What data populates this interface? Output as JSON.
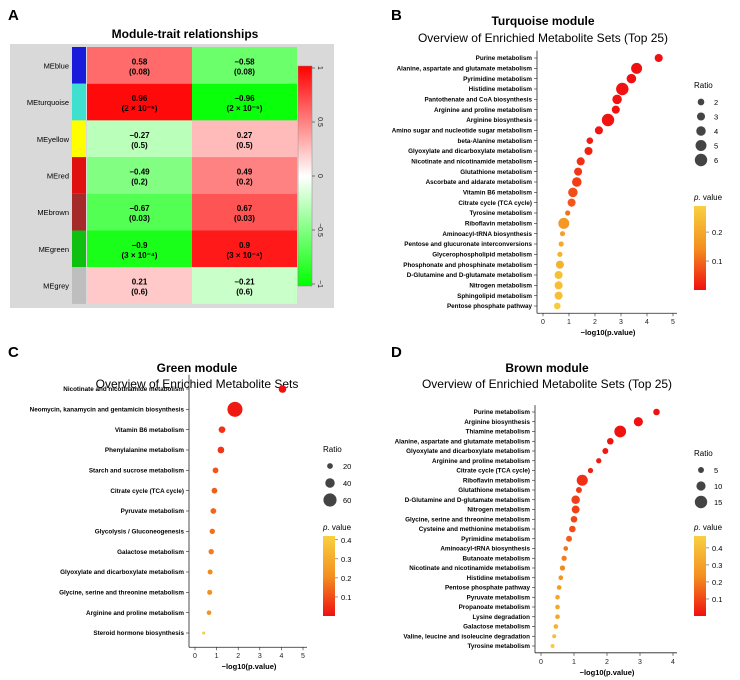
{
  "chart_data": [
    {
      "panel": "A",
      "type": "heatmap",
      "title": "Module-trait relationships",
      "rows": [
        {
          "label": "MEblue",
          "color": "#1a1adb",
          "values": [
            "0.58",
            "−0.58"
          ],
          "pvalues": [
            "(0.08)",
            "(0.08)"
          ],
          "r": [
            0.58,
            -0.58
          ]
        },
        {
          "label": "MEturquoise",
          "color": "#40e0d0",
          "values": [
            "0.96",
            "−0.96"
          ],
          "pvalues": [
            "(2 × 10⁻⁵)",
            "(2 × 10⁻⁵)"
          ],
          "r": [
            0.96,
            -0.96
          ]
        },
        {
          "label": "MEyellow",
          "color": "#ffff00",
          "values": [
            "−0.27",
            "0.27"
          ],
          "pvalues": [
            "(0.5)",
            "(0.5)"
          ],
          "r": [
            -0.27,
            0.27
          ]
        },
        {
          "label": "MEred",
          "color": "#e01010",
          "values": [
            "−0.49",
            "0.49"
          ],
          "pvalues": [
            "(0.2)",
            "(0.2)"
          ],
          "r": [
            -0.49,
            0.49
          ]
        },
        {
          "label": "MEbrown",
          "color": "#a52a2a",
          "values": [
            "−0.67",
            "0.67"
          ],
          "pvalues": [
            "(0.03)",
            "(0.03)"
          ],
          "r": [
            -0.67,
            0.67
          ]
        },
        {
          "label": "MEgreen",
          "color": "#10c010",
          "values": [
            "−0.9",
            "0.9"
          ],
          "pvalues": [
            "(3 × 10⁻⁴)",
            "(3 × 10⁻⁴)"
          ],
          "r": [
            -0.9,
            0.9
          ]
        },
        {
          "label": "MEgrey",
          "color": "#bebebe",
          "values": [
            "0.21",
            "−0.21"
          ],
          "pvalues": [
            "(0.6)",
            "(0.6)"
          ],
          "r": [
            0.21,
            -0.21
          ]
        }
      ],
      "colorbar": {
        "ticks": [
          "1",
          "0.5",
          "0",
          "−0.5",
          "−1"
        ],
        "range": [
          -1,
          1
        ]
      }
    },
    {
      "panel": "B",
      "type": "scatter",
      "title": "Turquoise module",
      "subtitle": "Overview of Enrichied Metabolite Sets (Top 25)",
      "xlabel": "−log10(p.value)",
      "xlim": [
        0,
        5
      ],
      "xticks": [
        "0",
        "1",
        "2",
        "3",
        "4",
        "5"
      ],
      "categories": [
        "Purine metabolism",
        "Alanine, aspartate and glutamate metabolism",
        "Pyrimidine metabolism",
        "Histidine metabolism",
        "Pantothenate and CoA biosynthesis",
        "Arginine and proline metabolism",
        "Arginine biosynthesis",
        "Amino sugar and nucleotide sugar metabolism",
        "beta-Alanine metabolism",
        "Glyoxylate and dicarboxylate metabolism",
        "Nicotinate and nicotinamide metabolism",
        "Glutathione metabolism",
        "Ascorbate and aldarate metabolism",
        "Vitamin B6 metabolism",
        "Citrate cycle (TCA cycle)",
        "Tyrosine metabolism",
        "Riboflavin metabolism",
        "Aminoacyl-tRNA biosynthesis",
        "Pentose and glucuronate interconversions",
        "Glycerophospholipid metabolism",
        "Phosphonate and phosphinate metabolism",
        "D-Glutamine and D-glutamate metabolism",
        "Nitrogen metabolism",
        "Sphingolipid metabolism",
        "Pentose phosphate pathway"
      ],
      "x": [
        4.45,
        3.6,
        3.4,
        3.05,
        2.85,
        2.8,
        2.5,
        2.15,
        1.8,
        1.75,
        1.45,
        1.35,
        1.3,
        1.15,
        1.1,
        0.95,
        0.8,
        0.75,
        0.7,
        0.65,
        0.65,
        0.6,
        0.6,
        0.6,
        0.55
      ],
      "ratio": [
        3,
        5,
        4,
        6,
        4,
        3,
        6,
        3,
        2,
        3,
        3,
        3,
        4,
        4,
        3,
        1,
        5,
        1,
        1,
        1,
        3,
        3,
        3,
        3,
        2
      ],
      "pvalue": [
        4e-05,
        0.00025,
        0.0004,
        0.0009,
        0.0014,
        0.0016,
        0.003,
        0.007,
        0.016,
        0.018,
        0.035,
        0.045,
        0.05,
        0.07,
        0.08,
        0.11,
        0.16,
        0.18,
        0.2,
        0.22,
        0.22,
        0.25,
        0.25,
        0.25,
        0.28
      ],
      "legend_ratio": {
        "title": "Ratio",
        "values": [
          "2",
          "3",
          "4",
          "5",
          "6"
        ]
      },
      "legend_p": {
        "title": "p. value",
        "ticks": [
          "0.2",
          "0.1"
        ],
        "range": [
          0,
          0.29
        ]
      }
    },
    {
      "panel": "C",
      "type": "scatter",
      "title": "Green module",
      "subtitle": "Overview of Enrichied Metabolite Sets",
      "xlabel": "−log10(p.value)",
      "xlim": [
        0,
        5
      ],
      "xticks": [
        "0",
        "1",
        "2",
        "3",
        "4",
        "5"
      ],
      "categories": [
        "Nicotinate and nicotinamide metabolism",
        "Neomycin, kanamycin and gentamicin biosynthesis",
        "Vitamin B6 metabolism",
        "Phenylalanine metabolism",
        "Starch and sucrose metabolism",
        "Citrate cycle (TCA cycle)",
        "Pyruvate metabolism",
        "Glycolysis / Gluconeogenesis",
        "Galactose metabolism",
        "Glyoxylate and dicarboxylate metabolism",
        "Glycine, serine and threonine metabolism",
        "Arginine and proline metabolism",
        "Steroid hormone biosynthesis"
      ],
      "x": [
        4.05,
        1.85,
        1.25,
        1.2,
        0.95,
        0.9,
        0.85,
        0.8,
        0.75,
        0.7,
        0.68,
        0.65,
        0.4
      ],
      "ratio": [
        30,
        70,
        25,
        25,
        20,
        20,
        20,
        18,
        18,
        16,
        16,
        14,
        5
      ],
      "pvalue": [
        0.0001,
        0.014,
        0.056,
        0.063,
        0.11,
        0.126,
        0.14,
        0.158,
        0.178,
        0.2,
        0.209,
        0.224,
        0.4
      ],
      "legend_ratio": {
        "title": "Ratio",
        "values": [
          "20",
          "40",
          "60"
        ]
      },
      "legend_p": {
        "title": "p. value",
        "ticks": [
          "0.4",
          "0.3",
          "0.2",
          "0.1"
        ],
        "range": [
          0,
          0.42
        ]
      }
    },
    {
      "panel": "D",
      "type": "scatter",
      "title": "Brown module",
      "subtitle": "Overview of Enrichied Metabolite Sets (Top 25)",
      "xlabel": "−log10(p.value)",
      "xlim": [
        0,
        4
      ],
      "xticks": [
        "0",
        "1",
        "2",
        "3",
        "4"
      ],
      "categories": [
        "Purine metabolism",
        "Arginine biosynthesis",
        "Thiamine metabolism",
        "Alanine, aspartate and glutamate metabolism",
        "Glyoxylate and dicarboxylate metabolism",
        "Arginine and proline metabolism",
        "Citrate cycle (TCA cycle)",
        "Riboflavin metabolism",
        "Glutathione metabolism",
        "D-Glutamine and D-glutamate metabolism",
        "Nitrogen metabolism",
        "Glycine, serine and threonine metabolism",
        "Cysteine and methionine metabolism",
        "Pyrimidine metabolism",
        "Aminoacyl-tRNA biosynthesis",
        "Butanoate metabolism",
        "Nicotinate and nicotinamide metabolism",
        "Histidine metabolism",
        "Pentose phosphate pathway",
        "Pyruvate metabolism",
        "Propanoate metabolism",
        "Lysine degradation",
        "Galactose metabolism",
        "Valine, leucine and isoleucine degradation",
        "Tyrosine metabolism"
      ],
      "x": [
        3.5,
        2.95,
        2.4,
        2.1,
        1.95,
        1.75,
        1.5,
        1.25,
        1.15,
        1.05,
        1.05,
        1.0,
        0.95,
        0.85,
        0.75,
        0.7,
        0.65,
        0.6,
        0.55,
        0.5,
        0.5,
        0.5,
        0.45,
        0.4,
        0.35
      ],
      "ratio": [
        6,
        10,
        14,
        6,
        5,
        4,
        4,
        13,
        5,
        9,
        8,
        6,
        6,
        5,
        3,
        4,
        4,
        3,
        3,
        3,
        3,
        3,
        3,
        2,
        2
      ],
      "pvalue": [
        0.0003,
        0.0011,
        0.004,
        0.008,
        0.011,
        0.018,
        0.032,
        0.056,
        0.071,
        0.089,
        0.089,
        0.1,
        0.112,
        0.141,
        0.178,
        0.2,
        0.224,
        0.251,
        0.282,
        0.316,
        0.316,
        0.316,
        0.355,
        0.398,
        0.447
      ],
      "legend_ratio": {
        "title": "Ratio",
        "values": [
          "5",
          "10",
          "15"
        ]
      },
      "legend_p": {
        "title": "p. value",
        "ticks": [
          "0.4",
          "0.3",
          "0.2",
          "0.1"
        ],
        "range": [
          0,
          0.47
        ]
      }
    }
  ]
}
